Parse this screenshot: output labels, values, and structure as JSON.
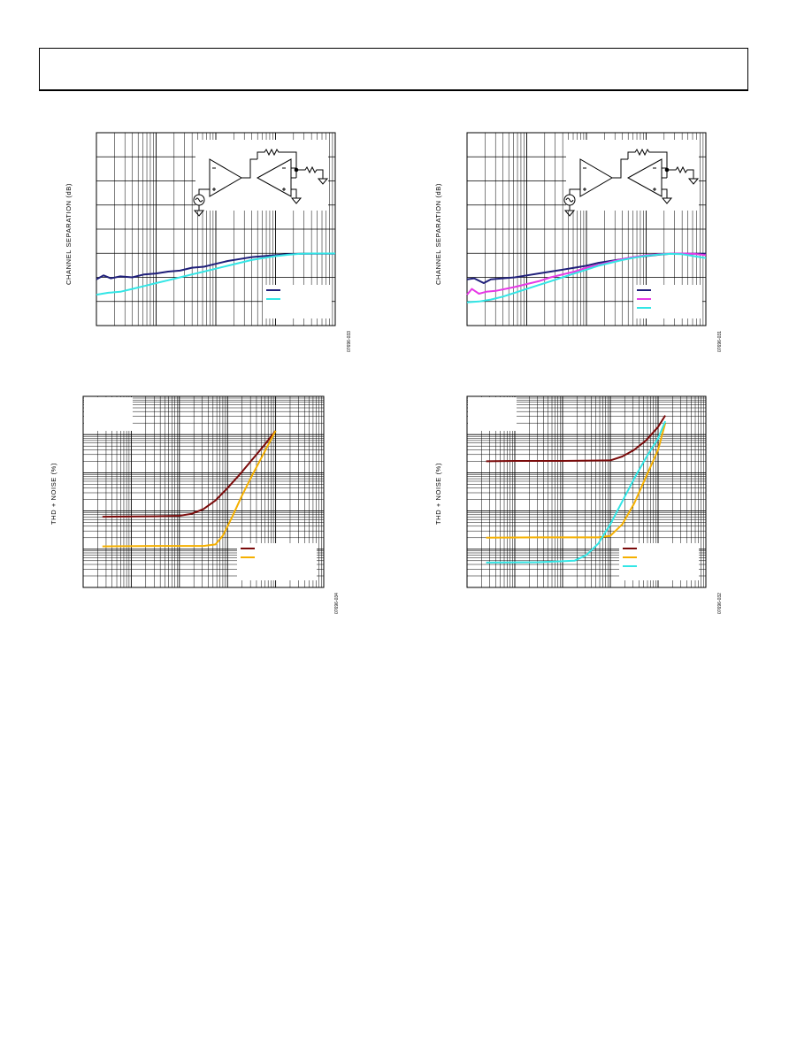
{
  "page": {
    "header_text": ""
  },
  "colors": {
    "navy": "#1f1f7a",
    "cyan": "#33e6e6",
    "magenta": "#e639e6",
    "orange": "#f5b000",
    "dark_red": "#7a0a0a"
  },
  "icons": [
    "opamp-circuit-icon",
    "sine-source-icon",
    "ground-icon",
    "resistor-icon"
  ],
  "chart_data": [
    {
      "id": "separation-left",
      "type": "line",
      "ylabel": "CHANNEL SEPARATION (dB)",
      "figure_id": "07696-033",
      "x_scale": "log",
      "legend_placement": "bottom-right",
      "series": [
        {
          "color": "navy",
          "values": [
            [
              0.0,
              0.24
            ],
            [
              0.03,
              0.26
            ],
            [
              0.06,
              0.245
            ],
            [
              0.1,
              0.255
            ],
            [
              0.15,
              0.25
            ],
            [
              0.2,
              0.265
            ],
            [
              0.25,
              0.27
            ],
            [
              0.3,
              0.28
            ],
            [
              0.35,
              0.285
            ],
            [
              0.4,
              0.3
            ],
            [
              0.45,
              0.305
            ],
            [
              0.5,
              0.32
            ],
            [
              0.55,
              0.335
            ],
            [
              0.6,
              0.345
            ],
            [
              0.65,
              0.355
            ],
            [
              0.7,
              0.36
            ],
            [
              0.75,
              0.365
            ],
            [
              0.8,
              0.37
            ],
            [
              0.85,
              0.372
            ],
            [
              0.9,
              0.373
            ],
            [
              1.0,
              0.373
            ]
          ]
        },
        {
          "color": "cyan",
          "values": [
            [
              0.0,
              0.16
            ],
            [
              0.05,
              0.17
            ],
            [
              0.1,
              0.175
            ],
            [
              0.15,
              0.19
            ],
            [
              0.2,
              0.205
            ],
            [
              0.25,
              0.22
            ],
            [
              0.3,
              0.235
            ],
            [
              0.35,
              0.25
            ],
            [
              0.4,
              0.265
            ],
            [
              0.45,
              0.28
            ],
            [
              0.5,
              0.295
            ],
            [
              0.55,
              0.31
            ],
            [
              0.6,
              0.325
            ],
            [
              0.65,
              0.34
            ],
            [
              0.7,
              0.35
            ],
            [
              0.75,
              0.36
            ],
            [
              0.8,
              0.367
            ],
            [
              0.85,
              0.372
            ],
            [
              0.9,
              0.374
            ],
            [
              1.0,
              0.374
            ]
          ]
        }
      ]
    },
    {
      "id": "separation-right",
      "type": "line",
      "ylabel": "CHANNEL SEPARATION (dB)",
      "figure_id": "07696-031",
      "x_scale": "log",
      "legend_placement": "bottom-right",
      "series": [
        {
          "color": "navy",
          "values": [
            [
              0.0,
              0.24
            ],
            [
              0.03,
              0.245
            ],
            [
              0.07,
              0.22
            ],
            [
              0.1,
              0.24
            ],
            [
              0.15,
              0.245
            ],
            [
              0.2,
              0.25
            ],
            [
              0.25,
              0.26
            ],
            [
              0.3,
              0.27
            ],
            [
              0.35,
              0.28
            ],
            [
              0.4,
              0.29
            ],
            [
              0.45,
              0.3
            ],
            [
              0.5,
              0.31
            ],
            [
              0.55,
              0.325
            ],
            [
              0.6,
              0.335
            ],
            [
              0.65,
              0.345
            ],
            [
              0.7,
              0.355
            ],
            [
              0.75,
              0.36
            ],
            [
              0.8,
              0.367
            ],
            [
              0.85,
              0.372
            ],
            [
              0.9,
              0.373
            ],
            [
              1.0,
              0.373
            ]
          ]
        },
        {
          "color": "magenta",
          "values": [
            [
              0.0,
              0.16
            ],
            [
              0.02,
              0.19
            ],
            [
              0.05,
              0.165
            ],
            [
              0.08,
              0.175
            ],
            [
              0.12,
              0.18
            ],
            [
              0.2,
              0.2
            ],
            [
              0.25,
              0.215
            ],
            [
              0.3,
              0.23
            ],
            [
              0.35,
              0.25
            ],
            [
              0.4,
              0.265
            ],
            [
              0.45,
              0.28
            ],
            [
              0.5,
              0.3
            ],
            [
              0.55,
              0.315
            ],
            [
              0.6,
              0.33
            ],
            [
              0.65,
              0.345
            ],
            [
              0.7,
              0.355
            ],
            [
              0.75,
              0.365
            ],
            [
              0.8,
              0.37
            ],
            [
              0.85,
              0.373
            ],
            [
              0.9,
              0.374
            ],
            [
              0.95,
              0.372
            ],
            [
              1.0,
              0.365
            ]
          ]
        },
        {
          "color": "cyan",
          "values": [
            [
              0.0,
              0.12
            ],
            [
              0.05,
              0.125
            ],
            [
              0.1,
              0.135
            ],
            [
              0.15,
              0.15
            ],
            [
              0.2,
              0.17
            ],
            [
              0.25,
              0.19
            ],
            [
              0.3,
              0.21
            ],
            [
              0.35,
              0.23
            ],
            [
              0.4,
              0.25
            ],
            [
              0.45,
              0.27
            ],
            [
              0.5,
              0.29
            ],
            [
              0.55,
              0.31
            ],
            [
              0.6,
              0.325
            ],
            [
              0.65,
              0.34
            ],
            [
              0.7,
              0.352
            ],
            [
              0.75,
              0.362
            ],
            [
              0.8,
              0.368
            ],
            [
              0.85,
              0.372
            ],
            [
              0.9,
              0.37
            ],
            [
              0.95,
              0.36
            ],
            [
              1.0,
              0.35
            ]
          ]
        }
      ]
    },
    {
      "id": "thd-left",
      "type": "line",
      "ylabel": "THD + NOISE (%)",
      "figure_id": "07696-034",
      "x_scale": "log",
      "y_scale": "log",
      "legend_placement": "bottom-right",
      "series": [
        {
          "color": "dark_red",
          "values": [
            [
              0.08,
              0.37
            ],
            [
              0.3,
              0.372
            ],
            [
              0.4,
              0.375
            ],
            [
              0.45,
              0.385
            ],
            [
              0.5,
              0.41
            ],
            [
              0.55,
              0.455
            ],
            [
              0.6,
              0.52
            ],
            [
              0.65,
              0.59
            ],
            [
              0.7,
              0.665
            ],
            [
              0.75,
              0.74
            ],
            [
              0.8,
              0.82
            ]
          ]
        },
        {
          "color": "orange",
          "values": [
            [
              0.08,
              0.215
            ],
            [
              0.3,
              0.217
            ],
            [
              0.5,
              0.217
            ],
            [
              0.55,
              0.225
            ],
            [
              0.58,
              0.27
            ],
            [
              0.62,
              0.37
            ],
            [
              0.66,
              0.48
            ],
            [
              0.7,
              0.58
            ],
            [
              0.75,
              0.7
            ],
            [
              0.8,
              0.82
            ]
          ]
        }
      ]
    },
    {
      "id": "thd-right",
      "type": "line",
      "ylabel": "THD + NOISE (%)",
      "figure_id": "07696-032",
      "x_scale": "log",
      "y_scale": "log",
      "legend_placement": "bottom-right",
      "series": [
        {
          "color": "dark_red",
          "values": [
            [
              0.08,
              0.66
            ],
            [
              0.2,
              0.662
            ],
            [
              0.4,
              0.662
            ],
            [
              0.6,
              0.665
            ],
            [
              0.65,
              0.685
            ],
            [
              0.7,
              0.72
            ],
            [
              0.75,
              0.77
            ],
            [
              0.8,
              0.84
            ],
            [
              0.83,
              0.9
            ]
          ]
        },
        {
          "color": "orange",
          "values": [
            [
              0.08,
              0.26
            ],
            [
              0.3,
              0.262
            ],
            [
              0.55,
              0.262
            ],
            [
              0.6,
              0.27
            ],
            [
              0.65,
              0.33
            ],
            [
              0.7,
              0.44
            ],
            [
              0.75,
              0.58
            ],
            [
              0.8,
              0.72
            ],
            [
              0.83,
              0.86
            ]
          ]
        },
        {
          "color": "cyan",
          "values": [
            [
              0.08,
              0.13
            ],
            [
              0.3,
              0.132
            ],
            [
              0.45,
              0.14
            ],
            [
              0.5,
              0.17
            ],
            [
              0.55,
              0.23
            ],
            [
              0.6,
              0.33
            ],
            [
              0.65,
              0.45
            ],
            [
              0.7,
              0.57
            ],
            [
              0.75,
              0.68
            ],
            [
              0.8,
              0.78
            ],
            [
              0.83,
              0.87
            ]
          ]
        }
      ]
    }
  ]
}
